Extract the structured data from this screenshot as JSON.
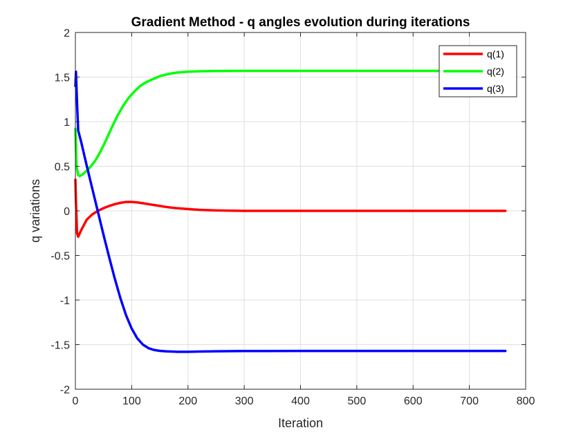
{
  "chart_data": {
    "type": "line",
    "title": "Gradient Method - q angles evolution during iterations",
    "xlabel": "Iteration",
    "ylabel": "q variations",
    "xlim": [
      0,
      800
    ],
    "ylim": [
      -2,
      2
    ],
    "xticks": [
      0,
      100,
      200,
      300,
      400,
      500,
      600,
      700,
      800
    ],
    "yticks": [
      -2,
      -1.5,
      -1,
      -0.5,
      0,
      0.5,
      1,
      1.5,
      2
    ],
    "xtick_labels": [
      "0",
      "100",
      "200",
      "300",
      "400",
      "500",
      "600",
      "700",
      "800"
    ],
    "ytick_labels": [
      "-2",
      "-1.5",
      "-1",
      "-0.5",
      "0",
      "0.5",
      "1",
      "1.5",
      "2"
    ],
    "grid": true,
    "legend_position": "top-right",
    "series": [
      {
        "name": "q(1)",
        "color": "#ff0000",
        "x": [
          0,
          1,
          3,
          5,
          10,
          20,
          30,
          40,
          50,
          60,
          70,
          80,
          90,
          100,
          110,
          120,
          130,
          140,
          150,
          160,
          170,
          180,
          200,
          220,
          250,
          300,
          350,
          400,
          500,
          600,
          700,
          764
        ],
        "y": [
          0.35,
          0.1,
          -0.25,
          -0.29,
          -0.22,
          -0.1,
          -0.04,
          0.0,
          0.03,
          0.055,
          0.075,
          0.09,
          0.1,
          0.1,
          0.095,
          0.085,
          0.075,
          0.065,
          0.055,
          0.045,
          0.037,
          0.03,
          0.02,
          0.012,
          0.005,
          0.0,
          0.0,
          0.0,
          0.0,
          0.0,
          0.0,
          0.0
        ]
      },
      {
        "name": "q(2)",
        "color": "#00ff00",
        "x": [
          0,
          2,
          5,
          8,
          15,
          25,
          35,
          45,
          55,
          65,
          75,
          85,
          95,
          105,
          115,
          125,
          135,
          150,
          165,
          180,
          200,
          220,
          250,
          300,
          350,
          400,
          500,
          600,
          700,
          764
        ],
        "y": [
          0.92,
          0.5,
          0.4,
          0.39,
          0.42,
          0.48,
          0.56,
          0.67,
          0.8,
          0.94,
          1.07,
          1.18,
          1.27,
          1.34,
          1.4,
          1.44,
          1.47,
          1.51,
          1.535,
          1.55,
          1.56,
          1.565,
          1.568,
          1.57,
          1.57,
          1.57,
          1.57,
          1.57,
          1.57,
          1.57
        ]
      },
      {
        "name": "q(3)",
        "color": "#0000ff",
        "x": [
          0,
          1,
          3,
          5,
          10,
          20,
          30,
          40,
          50,
          60,
          70,
          80,
          90,
          100,
          110,
          120,
          130,
          140,
          150,
          160,
          170,
          180,
          200,
          220,
          250,
          300,
          400,
          500,
          600,
          700,
          764
        ],
        "y": [
          1.4,
          1.56,
          1.2,
          0.9,
          0.78,
          0.51,
          0.25,
          -0.01,
          -0.27,
          -0.52,
          -0.76,
          -0.98,
          -1.17,
          -1.32,
          -1.43,
          -1.5,
          -1.54,
          -1.56,
          -1.57,
          -1.575,
          -1.578,
          -1.58,
          -1.58,
          -1.578,
          -1.575,
          -1.572,
          -1.571,
          -1.571,
          -1.571,
          -1.571,
          -1.571
        ]
      }
    ]
  }
}
